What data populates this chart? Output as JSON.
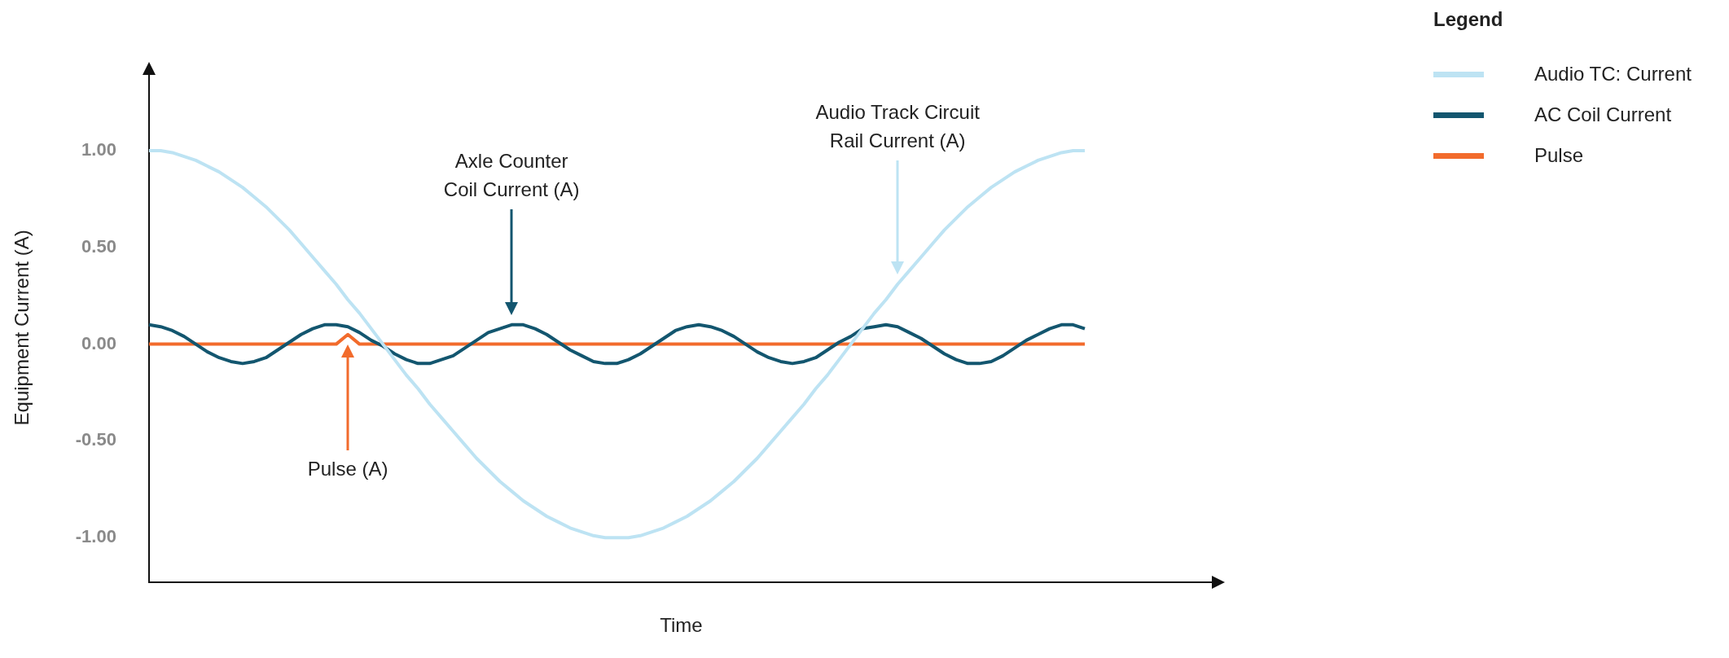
{
  "chart_data": {
    "type": "line",
    "xlabel": "Time",
    "ylabel": "Equipment Current (A)",
    "legend_title": "Legend",
    "legend": "top right",
    "grid": false,
    "marker": "none",
    "line_style": "solid",
    "categories": [
      null,
      null,
      null,
      null,
      null,
      null,
      null,
      null,
      null,
      null,
      null,
      null,
      null,
      null,
      null,
      null,
      null,
      null,
      null,
      null,
      null,
      null,
      null,
      null,
      null,
      null,
      null,
      null,
      null,
      null,
      null,
      null,
      null,
      null,
      null,
      null,
      null,
      null,
      null,
      null,
      null,
      null,
      null,
      null,
      null,
      null,
      null,
      null,
      null,
      null,
      null,
      null,
      null,
      null,
      null,
      null,
      null,
      null,
      null,
      null,
      null,
      null,
      null,
      null,
      null,
      null,
      null,
      null,
      null,
      null,
      null,
      null,
      null,
      null,
      null,
      null,
      null,
      null,
      null,
      null,
      null,
      null,
      null,
      null,
      null,
      null,
      null,
      null,
      null,
      null,
      null,
      null
    ],
    "ylim": [
      -1.23,
      1.4
    ],
    "yticks": [
      {
        "value": 1,
        "label": "1.00"
      },
      {
        "value": 0.5,
        "label": "0.50"
      },
      {
        "value": 0,
        "label": "0.00"
      },
      {
        "value": -0.5,
        "label": "-0.50"
      },
      {
        "value": -1,
        "label": "-1.00"
      }
    ],
    "series": [
      {
        "name": "Audio TC: Current",
        "color": "#bde3f3",
        "values": [
          1.0,
          1.0,
          0.99,
          0.97,
          0.95,
          0.92,
          0.89,
          0.85,
          0.81,
          0.76,
          0.71,
          0.65,
          0.59,
          0.52,
          0.45,
          0.38,
          0.31,
          0.23,
          0.16,
          0.08,
          0.0,
          -0.08,
          -0.16,
          -0.23,
          -0.31,
          -0.38,
          -0.45,
          -0.52,
          -0.59,
          -0.65,
          -0.71,
          -0.76,
          -0.81,
          -0.85,
          -0.89,
          -0.92,
          -0.95,
          -0.97,
          -0.99,
          -1.0,
          -1.0,
          -1.0,
          -0.99,
          -0.97,
          -0.95,
          -0.92,
          -0.89,
          -0.85,
          -0.81,
          -0.76,
          -0.71,
          -0.65,
          -0.59,
          -0.52,
          -0.45,
          -0.38,
          -0.31,
          -0.23,
          -0.16,
          -0.08,
          0.0,
          0.08,
          0.16,
          0.23,
          0.31,
          0.38,
          0.45,
          0.52,
          0.59,
          0.65,
          0.71,
          0.76,
          0.81,
          0.85,
          0.89,
          0.92,
          0.95,
          0.97,
          0.99,
          1.0,
          1.0,
          null,
          null,
          null,
          null,
          null,
          null,
          null,
          null,
          null,
          null,
          null
        ]
      },
      {
        "name": "AC Coil Current",
        "color": "#13566f",
        "values": [
          0.1,
          0.09,
          0.07,
          0.04,
          0.0,
          -0.04,
          -0.07,
          -0.09,
          -0.1,
          -0.09,
          -0.07,
          -0.03,
          0.01,
          0.05,
          0.08,
          0.1,
          0.1,
          0.09,
          0.06,
          0.02,
          -0.01,
          -0.05,
          -0.08,
          -0.1,
          -0.1,
          -0.08,
          -0.06,
          -0.02,
          0.02,
          0.06,
          0.08,
          0.1,
          0.1,
          0.08,
          0.05,
          0.01,
          -0.03,
          -0.06,
          -0.09,
          -0.1,
          -0.1,
          -0.08,
          -0.05,
          -0.01,
          0.03,
          0.07,
          0.09,
          0.1,
          0.09,
          0.07,
          0.04,
          0.0,
          -0.04,
          -0.07,
          -0.09,
          -0.1,
          -0.09,
          -0.07,
          -0.03,
          0.01,
          0.04,
          0.08,
          0.09,
          0.1,
          0.09,
          0.06,
          0.03,
          -0.01,
          -0.05,
          -0.08,
          -0.1,
          -0.1,
          -0.09,
          -0.06,
          -0.02,
          0.02,
          0.05,
          0.08,
          0.1,
          0.1,
          0.08,
          null,
          null,
          null,
          null,
          null,
          null,
          null,
          null,
          null,
          null,
          null
        ]
      },
      {
        "name": "Pulse",
        "color": "#f26b2c",
        "values": [
          0,
          0,
          0,
          0,
          0,
          0,
          0,
          0,
          0,
          0,
          0,
          0,
          0,
          0,
          0,
          0,
          0,
          0.05,
          0,
          0,
          0,
          0,
          0,
          0,
          0,
          0,
          0,
          0,
          0,
          0,
          0,
          0,
          0,
          0,
          0,
          0,
          0,
          0,
          0,
          0,
          0,
          0,
          0,
          0,
          0,
          0,
          0,
          0,
          0,
          0,
          0,
          0,
          0,
          0,
          0,
          0,
          0,
          0,
          0,
          0,
          0,
          0,
          0,
          0,
          0,
          0,
          0,
          0,
          0,
          0,
          0,
          0,
          0,
          0,
          0,
          0,
          0,
          0,
          0,
          0,
          0,
          null,
          null,
          null,
          null,
          null,
          null,
          null,
          null,
          null,
          null,
          null
        ]
      }
    ],
    "annotations": [
      "Axle Counter\nCoil Current (A)",
      "Audio Track Circuit\nRail Current (A)",
      "Pulse (A)"
    ]
  }
}
